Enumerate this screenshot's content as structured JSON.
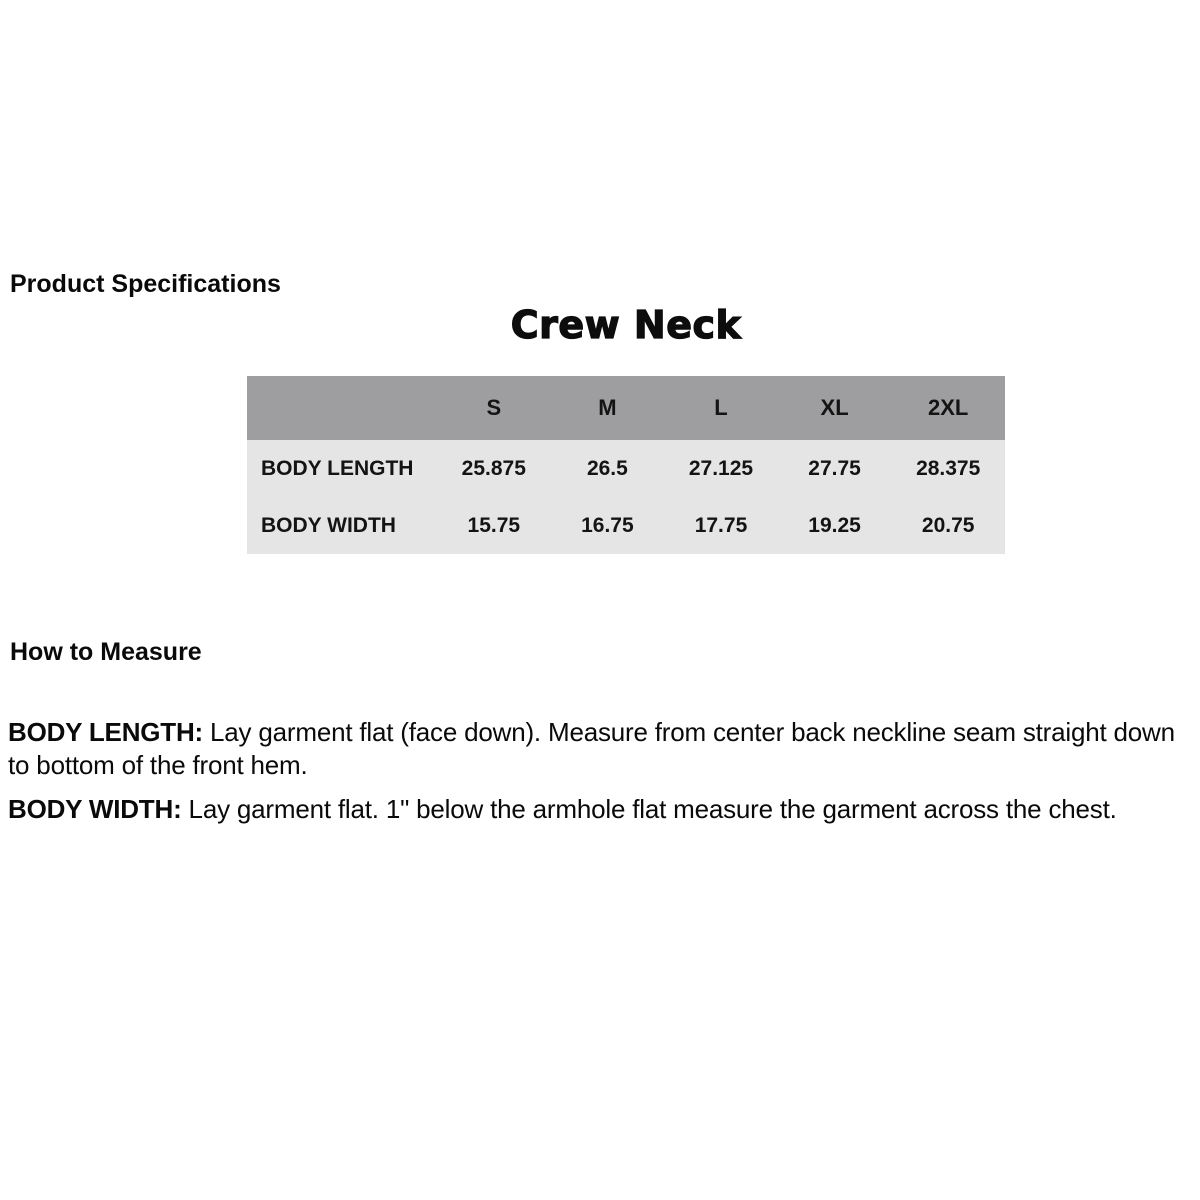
{
  "page": {
    "section1_title": "Product Specifications",
    "garment_title": "Crew Neck",
    "section2_title": "How to Measure"
  },
  "size_table": {
    "header_bg_color": "#9e9ea0",
    "body_bg_color": "#e5e5e5",
    "columns": [
      "",
      "S",
      "M",
      "L",
      "XL",
      "2XL"
    ],
    "rows": [
      {
        "label": "BODY LENGTH",
        "values": [
          "25.875",
          "26.5",
          "27.125",
          "27.75",
          "28.375"
        ]
      },
      {
        "label": "BODY WIDTH",
        "values": [
          "15.75",
          "16.75",
          "17.75",
          "19.25",
          "20.75"
        ]
      }
    ]
  },
  "instructions": [
    {
      "term": "BODY LENGTH:",
      "text": " Lay garment flat (face down). Measure from center back neckline seam straight down to bottom of the front hem."
    },
    {
      "term": "BODY WIDTH:",
      "text": " Lay garment flat. 1\" below the armhole flat measure the garment across the chest."
    }
  ]
}
